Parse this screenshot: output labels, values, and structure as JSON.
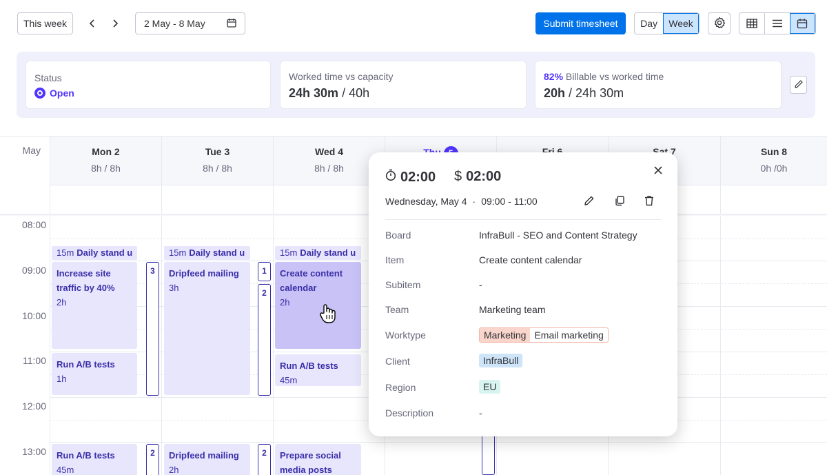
{
  "toolbar": {
    "this_week": "This week",
    "date_range": "2 May - 8 May",
    "submit": "Submit timesheet",
    "day": "Day",
    "week": "Week"
  },
  "summary": {
    "status_label": "Status",
    "status_value": "Open",
    "worked_label": "Worked time vs capacity",
    "worked_value": "24h 30m",
    "worked_capacity": "/ 40h",
    "billable_pct": "82%",
    "billable_label": "Billable vs worked time",
    "billable_value": "20h",
    "billable_total": "/ 24h 30m"
  },
  "calendar": {
    "month": "May",
    "days": [
      {
        "name": "Mon 2",
        "hours": "8h / 8h"
      },
      {
        "name": "Tue 3",
        "hours": "8h / 8h"
      },
      {
        "name": "Wed 4",
        "hours": "8h / 8h"
      },
      {
        "name": "Thu",
        "badge": "5",
        "hours": ""
      },
      {
        "name": "Fri 6",
        "hours": ""
      },
      {
        "name": "Sat 7",
        "hours": ""
      },
      {
        "name": "Sun 8",
        "hours": "0h /0h"
      }
    ],
    "hours": [
      "08:00",
      "09:00",
      "10:00",
      "11:00",
      "12:00",
      "13:00"
    ],
    "standup": {
      "dur": "15m",
      "title": "Daily stand u"
    },
    "events": {
      "mon1": {
        "title": "Increase site traffic by 40%",
        "dur": "2h"
      },
      "mon2": {
        "title": "Run A/B tests",
        "dur": "1h"
      },
      "mon3": {
        "title": "Run A/B tests",
        "dur": "45m"
      },
      "tue1": {
        "title": "Dripfeed mailing",
        "dur": "3h"
      },
      "tue2": {
        "title": "Dripfeed mailing",
        "dur": "2h"
      },
      "wed1": {
        "title": "Create content calendar",
        "dur": "2h"
      },
      "wed2": {
        "title": "Run A/B tests",
        "dur": "45m"
      },
      "wed3": {
        "title": "Prepare social media posts",
        "dur": ""
      }
    },
    "stacks": {
      "mon_a": "3",
      "mon_b": "2",
      "tue_a": "1",
      "tue_b": "2",
      "tue_c": "2"
    }
  },
  "popup": {
    "timer": "02:00",
    "billable": "02:00",
    "date": "Wednesday, May 4",
    "time": "09:00 - 11:00",
    "rows": [
      {
        "k": "Board",
        "v": "InfraBull - SEO and Content Strategy"
      },
      {
        "k": "Item",
        "v": "Create content calendar"
      },
      {
        "k": "Subitem",
        "v": "-"
      },
      {
        "k": "Team",
        "v": "Marketing team"
      },
      {
        "k": "Worktype",
        "v1": "Marketing",
        "v2": "Email marketing"
      },
      {
        "k": "Client",
        "v": "InfraBull"
      },
      {
        "k": "Region",
        "v": "EU"
      },
      {
        "k": "Description",
        "v": "-"
      }
    ]
  }
}
